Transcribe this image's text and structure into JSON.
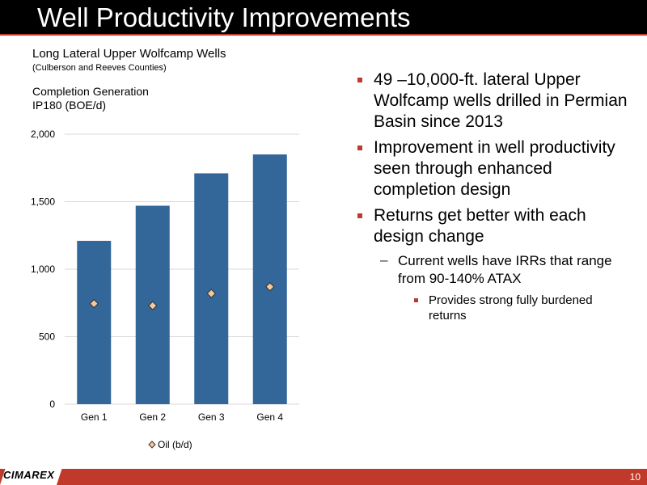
{
  "header": {
    "title": "Well Productivity Improvements"
  },
  "chart_data": {
    "type": "bar",
    "title": "Long Lateral Upper Wolfcamp Wells",
    "subtitle": "(Culberson and Reeves Counties)",
    "label1": "Completion Generation",
    "label2": "IP180 (BOE/d)",
    "categories": [
      "Gen 1",
      "Gen 2",
      "Gen 3",
      "Gen 4"
    ],
    "series": [
      {
        "name": "IP180 (BOE/d)",
        "values": [
          1210,
          1470,
          1710,
          1850
        ]
      },
      {
        "name": "Oil (b/d)",
        "values": [
          745,
          730,
          820,
          870
        ]
      }
    ],
    "yticks": [
      "0",
      "500",
      "1,000",
      "1,500",
      "2,000"
    ],
    "ylim": [
      0,
      2000
    ],
    "grid": true,
    "legend_label": "Oil (b/d)",
    "legend_position": "bottom",
    "colors": {
      "bar": "#336699",
      "marker_fill": "#f7c99a",
      "marker_stroke": "#333333",
      "grid": "#d9d9d9"
    }
  },
  "bullets": {
    "b1": "49 –10,000-ft. lateral Upper Wolfcamp wells drilled in Permian Basin since 2013",
    "b2": "Improvement in well productivity seen through enhanced completion design",
    "b3": "Returns get better with each design change",
    "sub1": "Current wells have IRRs that range from 90-140% ATAX",
    "subsub1": "Provides strong fully burdened returns",
    "dash": "–"
  },
  "footer": {
    "logo": "CIMAREX",
    "page": "10"
  }
}
